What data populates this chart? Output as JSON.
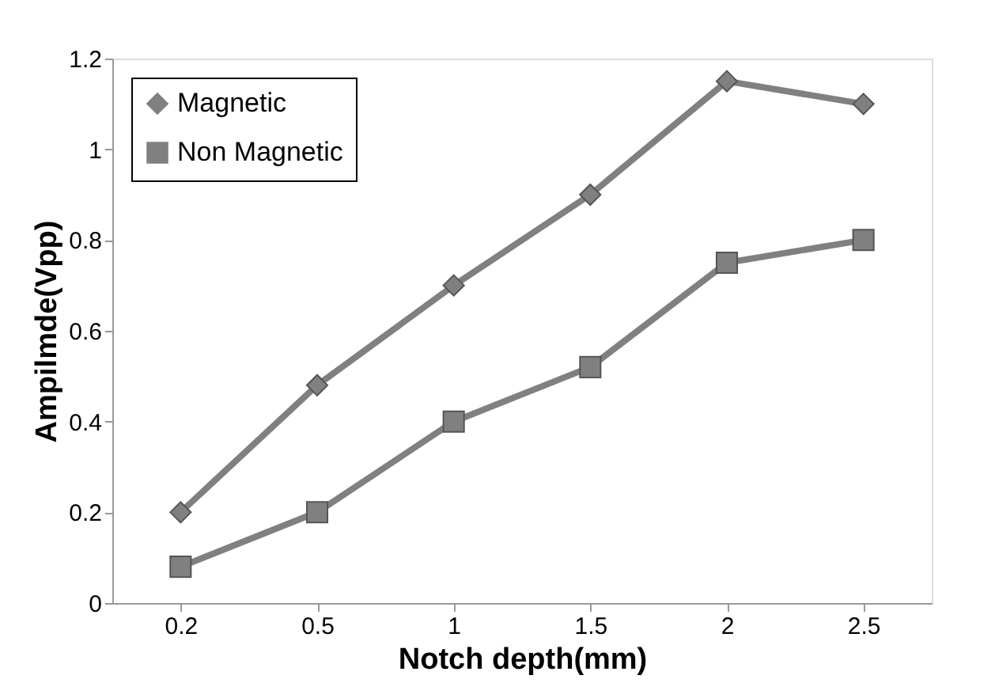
{
  "chart_data": {
    "type": "line",
    "xlabel": "Notch depth(mm)",
    "ylabel": "Ampilmde(Vpp)",
    "categories": [
      "0.2",
      "0.5",
      "1",
      "1.5",
      "2",
      "2.5"
    ],
    "series": [
      {
        "name": "Magnetic",
        "color": "#808080",
        "marker": "diamond",
        "values": [
          0.2,
          0.48,
          0.7,
          0.9,
          1.15,
          1.1
        ]
      },
      {
        "name": "Non Magnetic",
        "color": "#808080",
        "marker": "square",
        "values": [
          0.08,
          0.2,
          0.4,
          0.52,
          0.75,
          0.8
        ]
      }
    ],
    "ylim": [
      0,
      1.2
    ],
    "yticks": [
      0,
      0.2,
      0.4,
      0.6,
      0.8,
      1,
      1.2
    ],
    "grid": false,
    "legend": "top left",
    "line_style": "solid"
  }
}
